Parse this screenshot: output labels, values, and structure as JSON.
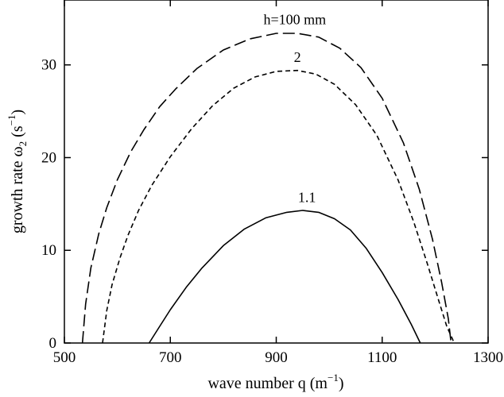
{
  "chart_data": {
    "type": "line",
    "xlabel": "wave number q (m",
    "xlabel_sup": "−1",
    "xlabel_end": ")",
    "ylabel": "growth rate ω",
    "ylabel_sub": "2",
    "ylabel_mid": " (s",
    "ylabel_sup": "−1",
    "ylabel_end": ")",
    "xlim": [
      500,
      1300
    ],
    "ylim": [
      0,
      37
    ],
    "x_ticks": [
      "500",
      "700",
      "900",
      "1100",
      "1300"
    ],
    "y_ticks": [
      "0",
      "10",
      "20",
      "30"
    ],
    "series": [
      {
        "name": "h=100 mm",
        "style": "long-dash",
        "color": "#000000",
        "points": [
          [
            534,
            0
          ],
          [
            540,
            4.2
          ],
          [
            550,
            8.1
          ],
          [
            565,
            11.8
          ],
          [
            580,
            14.6
          ],
          [
            600,
            17.6
          ],
          [
            625,
            20.6
          ],
          [
            650,
            23.0
          ],
          [
            680,
            25.5
          ],
          [
            710,
            27.4
          ],
          [
            750,
            29.6
          ],
          [
            800,
            31.6
          ],
          [
            850,
            32.8
          ],
          [
            900,
            33.4
          ],
          [
            940,
            33.4
          ],
          [
            980,
            33.0
          ],
          [
            1020,
            31.8
          ],
          [
            1060,
            29.7
          ],
          [
            1100,
            26.4
          ],
          [
            1140,
            21.6
          ],
          [
            1170,
            16.6
          ],
          [
            1195,
            11.2
          ],
          [
            1212,
            6.6
          ],
          [
            1225,
            2.6
          ],
          [
            1230,
            0
          ]
        ]
      },
      {
        "name": "2",
        "style": "short-dash",
        "color": "#000000",
        "points": [
          [
            572,
            0
          ],
          [
            580,
            3.5
          ],
          [
            590,
            6.3
          ],
          [
            605,
            9.2
          ],
          [
            620,
            11.6
          ],
          [
            640,
            14.3
          ],
          [
            665,
            17.0
          ],
          [
            700,
            20.1
          ],
          [
            740,
            23.1
          ],
          [
            780,
            25.6
          ],
          [
            820,
            27.5
          ],
          [
            860,
            28.7
          ],
          [
            900,
            29.3
          ],
          [
            940,
            29.4
          ],
          [
            975,
            29.0
          ],
          [
            1010,
            27.9
          ],
          [
            1050,
            25.7
          ],
          [
            1090,
            22.4
          ],
          [
            1130,
            17.6
          ],
          [
            1160,
            13.0
          ],
          [
            1185,
            8.6
          ],
          [
            1205,
            4.9
          ],
          [
            1222,
            1.8
          ],
          [
            1236,
            0
          ]
        ]
      },
      {
        "name": "1.1",
        "style": "solid",
        "color": "#000000",
        "points": [
          [
            660,
            0
          ],
          [
            680,
            1.8
          ],
          [
            700,
            3.6
          ],
          [
            730,
            6.0
          ],
          [
            760,
            8.1
          ],
          [
            800,
            10.5
          ],
          [
            840,
            12.3
          ],
          [
            880,
            13.5
          ],
          [
            920,
            14.1
          ],
          [
            950,
            14.3
          ],
          [
            980,
            14.1
          ],
          [
            1010,
            13.4
          ],
          [
            1040,
            12.2
          ],
          [
            1070,
            10.2
          ],
          [
            1100,
            7.6
          ],
          [
            1130,
            4.7
          ],
          [
            1155,
            2.0
          ],
          [
            1172,
            0
          ]
        ]
      }
    ],
    "annotations": [
      {
        "text": "h=100 mm",
        "x": 935,
        "y": 34.4
      },
      {
        "text": "2",
        "x": 940,
        "y": 30.3
      },
      {
        "text": "1.1",
        "x": 958,
        "y": 15.2
      }
    ]
  }
}
